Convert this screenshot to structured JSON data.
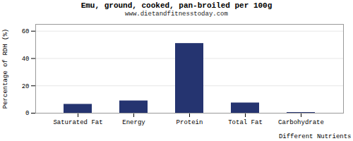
{
  "chart_data": {
    "type": "bar",
    "title": "Emu, ground, cooked, pan-broiled per 100g",
    "subtitle": "www.dietandfitnesstoday.com",
    "xlabel": "Different Nutrients",
    "ylabel": "Percentage of RDH (%)",
    "categories": [
      "Saturated Fat",
      "Energy",
      "Protein",
      "Total Fat",
      "Carbohydrate"
    ],
    "values": [
      6.5,
      9.0,
      51.0,
      7.5,
      0.5
    ],
    "color": "#253470",
    "ylim": [
      0,
      65
    ],
    "yticks": [
      0,
      20,
      40,
      60
    ],
    "grid": true
  }
}
